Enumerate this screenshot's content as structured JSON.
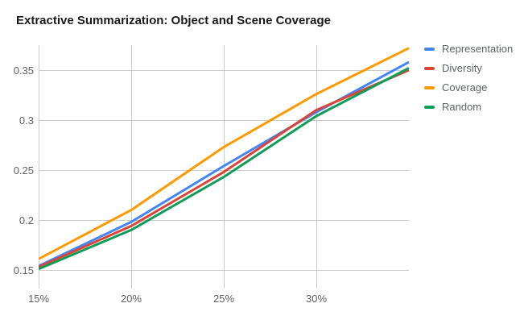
{
  "chart_data": {
    "type": "line",
    "title": "Extractive Summarization: Object and Scene Coverage",
    "xlabel": "",
    "ylabel": "",
    "x": [
      15,
      20,
      25,
      30,
      35
    ],
    "x_ticks": [
      15,
      20,
      25,
      30
    ],
    "x_tick_labels": [
      "15%",
      "20%",
      "25%",
      "30%"
    ],
    "y_ticks": [
      0.15,
      0.2,
      0.25,
      0.3,
      0.35
    ],
    "y_tick_labels": [
      "0.15",
      "0.2",
      "0.25",
      "0.3",
      "0.35"
    ],
    "xlim": [
      15,
      35
    ],
    "ylim": [
      0.1314,
      0.375
    ],
    "grid": true,
    "legend_position": "right",
    "gridline_color": "#cccccc",
    "background_color": "#ffffff",
    "series": [
      {
        "name": "Representation",
        "color": "#4285F4",
        "values": [
          0.154,
          0.198,
          0.254,
          0.308,
          0.358
        ]
      },
      {
        "name": "Diversity",
        "color": "#DB4437",
        "values": [
          0.153,
          0.194,
          0.248,
          0.31,
          0.35
        ]
      },
      {
        "name": "Coverage",
        "color": "#FF9900",
        "values": [
          0.161,
          0.21,
          0.273,
          0.326,
          0.372
        ]
      },
      {
        "name": "Random",
        "color": "#0F9D58",
        "values": [
          0.151,
          0.19,
          0.243,
          0.304,
          0.352
        ]
      }
    ]
  }
}
